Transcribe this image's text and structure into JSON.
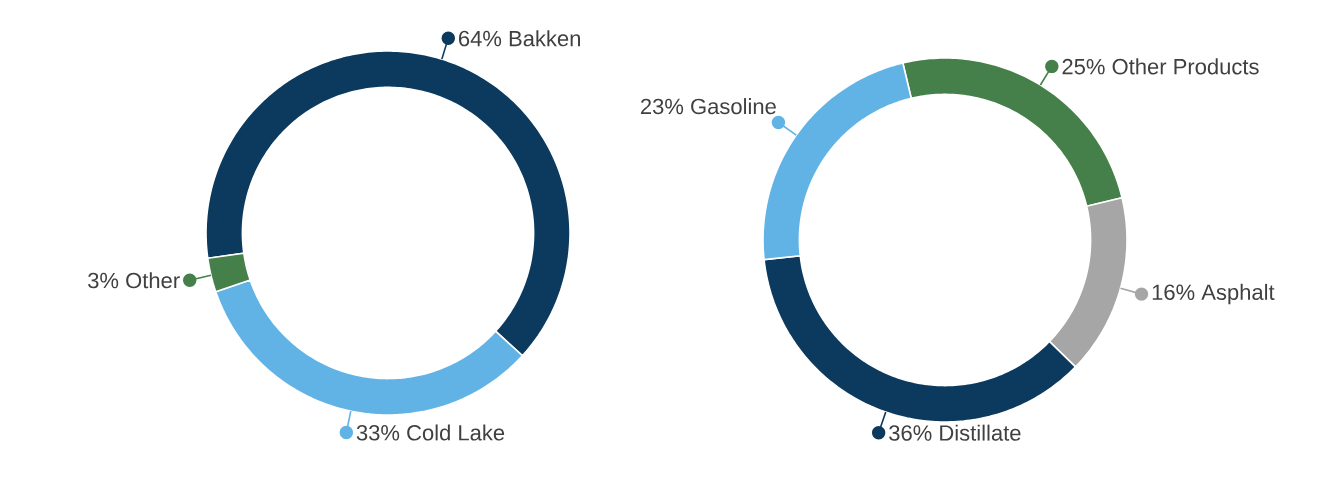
{
  "chart_data": [
    {
      "type": "donut",
      "categories": [
        "Bakken",
        "Cold Lake",
        "Other"
      ],
      "values": [
        64,
        33,
        3
      ],
      "colors": [
        "#0b3a5e",
        "#62b3e5",
        "#45804a"
      ],
      "value_labels": [
        "64%",
        "33%",
        "3%"
      ]
    },
    {
      "type": "donut",
      "categories": [
        "Other Products",
        "Asphalt",
        "Distillate",
        "Gasoline"
      ],
      "values": [
        25,
        16,
        36,
        23
      ],
      "colors": [
        "#45804a",
        "#a6a6a6",
        "#0b3a5e",
        "#62b3e5"
      ],
      "value_labels": [
        "25%",
        "16%",
        "36%",
        "23%"
      ]
    }
  ]
}
